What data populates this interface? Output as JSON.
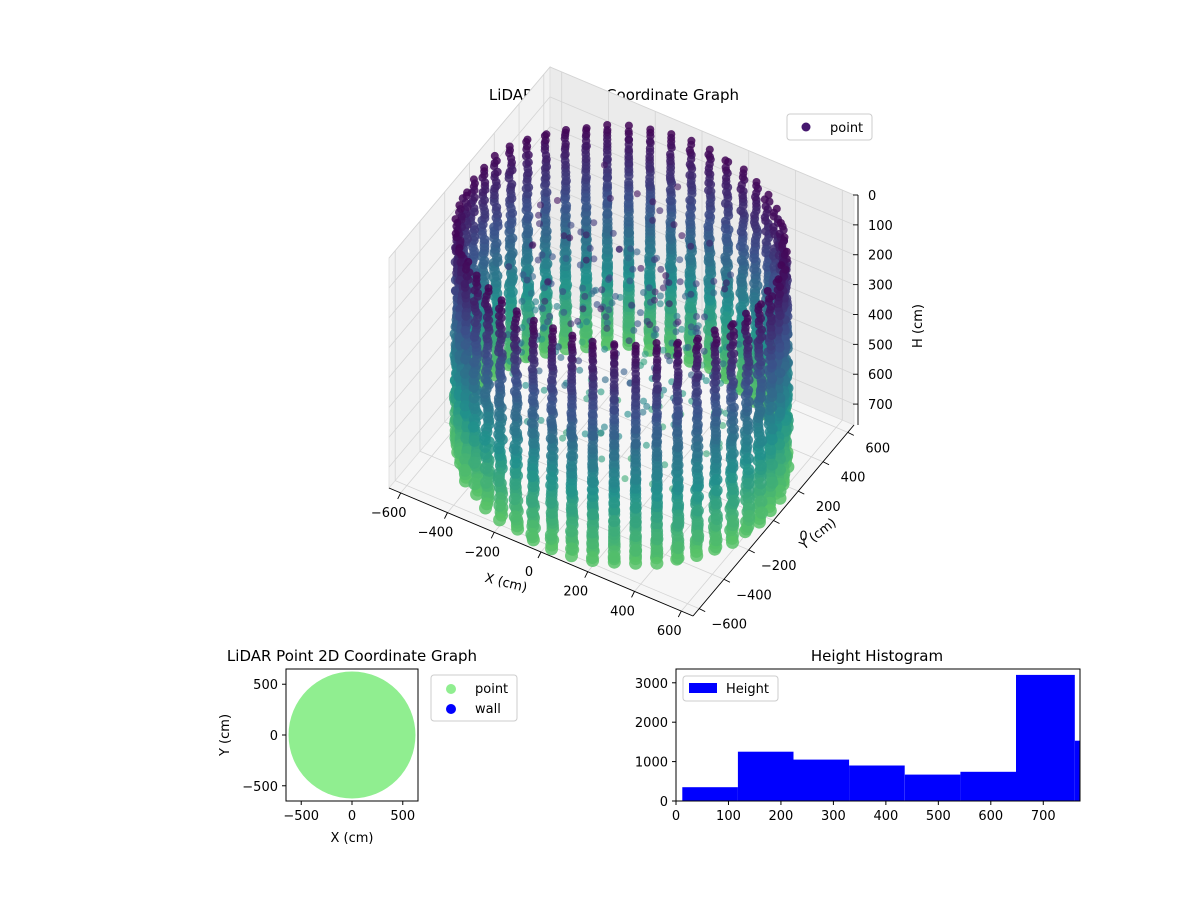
{
  "chart_data": [
    {
      "type": "scatter",
      "title": "LiDAR Point 3D Coordinate Graph",
      "xlabel": "X (cm)",
      "ylabel": "Y (cm)",
      "zlabel": "H (cm)",
      "xlim": [
        -650,
        650
      ],
      "ylim": [
        -650,
        650
      ],
      "zlim": [
        0,
        770
      ],
      "z_inverted": true,
      "x_ticks": [
        -600,
        -400,
        -200,
        0,
        200,
        400,
        600
      ],
      "y_ticks": [
        -600,
        -400,
        -200,
        0,
        200,
        400,
        600
      ],
      "z_ticks": [
        0,
        100,
        200,
        300,
        400,
        500,
        600,
        700
      ],
      "colormap": [
        "#440154",
        "#3b528b",
        "#21918c",
        "#5ec962"
      ],
      "legend": {
        "entries": [
          {
            "name": "point",
            "color": "#46186f"
          }
        ],
        "position": "top-right"
      },
      "wall": {
        "radius": 620,
        "height_top": 30,
        "height_bottom": 770,
        "column_count": 48
      },
      "interior": {
        "point_count": 260,
        "radius_max": 450,
        "height_range": [
          50,
          650
        ]
      },
      "grid": true
    },
    {
      "type": "scatter",
      "title": "LiDAR Point 2D Coordinate Graph",
      "xlabel": "X (cm)",
      "ylabel": "Y (cm)",
      "xlim": [
        -650,
        650
      ],
      "ylim": [
        -650,
        650
      ],
      "x_ticks": [
        -500,
        0,
        500
      ],
      "y_ticks": [
        -500,
        0,
        500
      ],
      "point_disc_radius": 625,
      "series": [
        {
          "name": "point",
          "color": "#90ee90"
        },
        {
          "name": "wall",
          "color": "#0000ff"
        }
      ],
      "legend_position": "outside-right"
    },
    {
      "type": "bar",
      "title": "Height Histogram",
      "xlim": [
        0,
        770
      ],
      "ylim": [
        0,
        3350
      ],
      "x_ticks": [
        0,
        100,
        200,
        300,
        400,
        500,
        600,
        700
      ],
      "y_ticks": [
        0,
        1000,
        2000,
        3000
      ],
      "bins": [
        {
          "from": 12,
          "to": 118,
          "count": 350
        },
        {
          "from": 118,
          "to": 224,
          "count": 1250
        },
        {
          "from": 224,
          "to": 330,
          "count": 1050
        },
        {
          "from": 330,
          "to": 436,
          "count": 900
        },
        {
          "from": 436,
          "to": 542,
          "count": 670
        },
        {
          "from": 542,
          "to": 648,
          "count": 740
        },
        {
          "from": 648,
          "to": 760,
          "count": 3200
        },
        {
          "from": 760,
          "to": 770,
          "count": 1530
        }
      ],
      "color": "#0000ff",
      "series": [
        {
          "name": "Height",
          "color": "#0000ff"
        }
      ],
      "legend_position": "top-left"
    }
  ]
}
